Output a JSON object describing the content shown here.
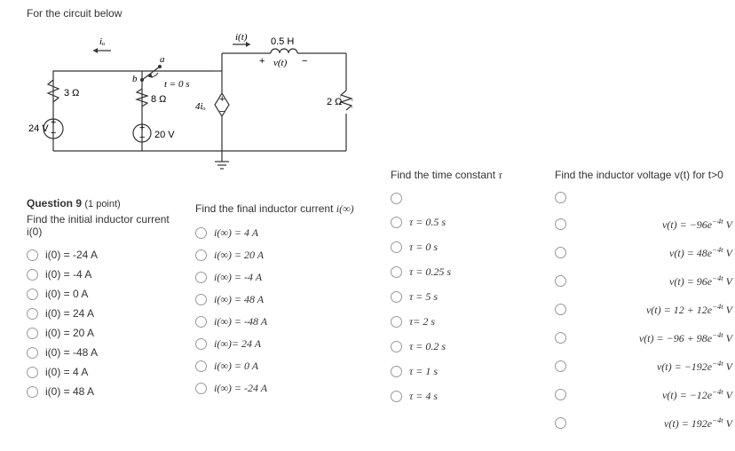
{
  "header": "For the circuit below",
  "circuit": {
    "i_o_label": "iₒ",
    "i_t_label": "i(t)",
    "a_label": "a",
    "b_label": "b",
    "t0_label": "t = 0 s",
    "inductor_value": "0.5 H",
    "voltage_label": "v(t)",
    "r1": "3 Ω",
    "r2": "8 Ω",
    "r3": "2 Ω",
    "v_source": "24 V",
    "i_source": "20 V",
    "dep_source": "4iₒ"
  },
  "q1": {
    "title": "Question 9",
    "points": "(1 point)",
    "prompt": "Find the initial inductor current i(0)",
    "options": [
      "i(0)  =  -24 A",
      "i(0)  =  -4 A",
      "i(0)  =  0 A",
      "i(0)  =  24 A",
      "i(0)  =  20 A",
      "i(0)  =  -48 A",
      "i(0)  =  4 A",
      "i(0) =  48 A"
    ]
  },
  "q2": {
    "prompt_prefix": "Find the final inductor current ",
    "prompt_math": "i(∞)",
    "options": [
      "i(∞) = 4 A",
      "i(∞) = 20 A",
      "i(∞) = -4 A",
      "i(∞) = 48 A",
      "i(∞) = -48 A",
      "i(∞)= 24 A",
      "i(∞) = 0 A",
      "i(∞) = -24 A"
    ]
  },
  "q3": {
    "prompt_prefix": "Find the time constant ",
    "prompt_math": "τ",
    "options": [
      "τ = 0.5 s",
      "τ = 0 s",
      "τ = 0.25 s",
      "τ = 5 s",
      "τ= 2 s",
      "τ = 0.2 s",
      "τ = 1 s",
      "τ = 4 s"
    ]
  },
  "q4": {
    "prompt": "Find the inductor voltage v(t) for t>0",
    "options": [
      {
        "pre": "v(t) = −96e",
        "exp": "−4t",
        "post": " V"
      },
      {
        "pre": "v(t) = 48e",
        "exp": "−4t",
        "post": " V"
      },
      {
        "pre": "v(t) = 96e",
        "exp": "−4t",
        "post": " V"
      },
      {
        "pre": "v(t) = 12 + 12e",
        "exp": "−4t",
        "post": " V"
      },
      {
        "pre": "v(t) = −96 + 98e",
        "exp": "−4t",
        "post": " V"
      },
      {
        "pre": "v(t) = −192e",
        "exp": "−4t",
        "post": " V"
      },
      {
        "pre": "v(t) = −12e",
        "exp": "−4t",
        "post": " V"
      },
      {
        "pre": "v(t) = 192e",
        "exp": "−4t",
        "post": " V"
      }
    ]
  }
}
